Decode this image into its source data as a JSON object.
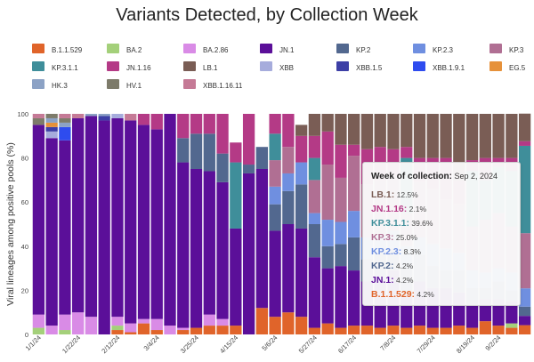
{
  "chart_data": {
    "type": "bar",
    "title": "Variants Detected, by Collection Week",
    "ylabel": "Viral lineages among positive pools (%)",
    "ylim": [
      0,
      100
    ],
    "y_ticks": [
      0,
      20,
      40,
      60,
      80,
      100
    ],
    "x_tick_labels": [
      "1/1/24",
      "1/22/24",
      "2/12/24",
      "3/4/24",
      "3/25/24",
      "4/15/24",
      "5/6/24",
      "5/27/24",
      "6/17/24",
      "7/8/24",
      "7/29/24",
      "8/19/24",
      "9/2/24"
    ],
    "x_tick_positions": [
      0,
      3,
      6,
      9,
      12,
      15,
      18,
      21,
      24,
      27,
      30,
      33,
      35
    ],
    "legend": [
      {
        "name": "B.1.1.529",
        "color": "#e0642a"
      },
      {
        "name": "BA.2",
        "color": "#a4d07a"
      },
      {
        "name": "BA.2.86",
        "color": "#d98be6"
      },
      {
        "name": "JN.1",
        "color": "#5b0f99"
      },
      {
        "name": "KP.2",
        "color": "#52688f"
      },
      {
        "name": "KP.2.3",
        "color": "#6f8fe0"
      },
      {
        "name": "KP.3",
        "color": "#b06f93"
      },
      {
        "name": "KP.3.1.1",
        "color": "#3f8e9a"
      },
      {
        "name": "JN.1.16",
        "color": "#b43a86"
      },
      {
        "name": "LB.1",
        "color": "#7a5d55"
      },
      {
        "name": "XBB",
        "color": "#a6acdc"
      },
      {
        "name": "XBB.1.5",
        "color": "#3d3fa6"
      },
      {
        "name": "XBB.1.9.1",
        "color": "#2e4cef"
      },
      {
        "name": "EG.5",
        "color": "#e6913a"
      },
      {
        "name": "HK.3",
        "color": "#8ca2c5"
      },
      {
        "name": "HV.1",
        "color": "#7d7b6a"
      },
      {
        "name": "XBB.1.16.11",
        "color": "#c57a96"
      }
    ],
    "series_order": [
      "B.1.1.529",
      "BA.2",
      "BA.2.86",
      "JN.1",
      "KP.2",
      "KP.2.3",
      "KP.3",
      "KP.3.1.1",
      "JN.1.16",
      "LB.1",
      "XBB",
      "XBB.1.5",
      "XBB.1.9.1",
      "EG.5",
      "HK.3",
      "HV.1",
      "XBB.1.16.11"
    ],
    "bars": [
      {
        "BA.2": 3,
        "BA.2.86": 6,
        "JN.1": 86,
        "HV.1": 3,
        "XBB.1.16.11": 2
      },
      {
        "BA.2.86": 4,
        "JN.1": 85,
        "XBB.1.5": 2,
        "HK.3": 2,
        "XBB": 3,
        "HV.1": 2,
        "EG.5": 2
      },
      {
        "BA.2": 2,
        "BA.2.86": 7,
        "JN.1": 79,
        "HK.3": 2,
        "XBB.1.9.1": 6,
        "HV.1": 2,
        "XBB.1.16.11": 2
      },
      {
        "BA.2.86": 10,
        "JN.1": 88,
        "XBB.1.16.11": 2
      },
      {
        "BA.2.86": 8,
        "JN.1": 91,
        "HK.3": 1
      },
      {
        "JN.1": 97,
        "XBB.1.5": 2,
        "HK.3": 1
      },
      {
        "B.1.1.529": 2,
        "BA.2": 2,
        "BA.2.86": 4,
        "JN.1": 90,
        "XBB": 2
      },
      {
        "B.1.1.529": 1,
        "BA.2.86": 4,
        "JN.1": 92,
        "XBB.1.16.11": 3
      },
      {
        "B.1.1.529": 5,
        "BA.2.86": 2,
        "JN.1": 88,
        "JN.1.16": 5
      },
      {
        "B.1.1.529": 2,
        "BA.2.86": 5,
        "JN.1": 86,
        "JN.1.16": 7
      },
      {
        "BA.2.86": 4,
        "JN.1": 96
      },
      {
        "B.1.1.529": 2,
        "BA.2.86": 1,
        "JN.1": 75,
        "KP.2": 11,
        "JN.1.16": 11
      },
      {
        "B.1.1.529": 3,
        "JN.1": 72,
        "KP.2": 16,
        "JN.1.16": 9
      },
      {
        "B.1.1.529": 4,
        "BA.2.86": 5,
        "JN.1": 65,
        "KP.2": 17,
        "JN.1.16": 9
      },
      {
        "B.1.1.529": 4,
        "BA.2.86": 3,
        "JN.1": 62,
        "KP.2": 13,
        "JN.1.16": 18
      },
      {
        "B.1.1.529": 4,
        "JN.1": 44,
        "KP.3.1.1": 30,
        "JN.1.16": 9
      },
      {
        "JN.1": 73,
        "KP.2": 4,
        "JN.1.16": 23
      },
      {
        "B.1.1.529": 12,
        "JN.1": 63,
        "KP.2": 10
      },
      {
        "B.1.1.529": 8,
        "JN.1": 39,
        "KP.2": 12,
        "KP.3.1.1": 12,
        "KP.2.3": 8,
        "KP.3": 12,
        "JN.1.16": 9
      },
      {
        "B.1.1.529": 10,
        "JN.1": 40,
        "KP.2": 15,
        "KP.2.3": 8,
        "KP.3": 12,
        "JN.1.16": 15
      },
      {
        "B.1.1.529": 8,
        "JN.1": 40,
        "KP.2": 20,
        "KP.2.3": 10,
        "JN.1.16": 12,
        "LB.1": 5
      },
      {
        "B.1.1.529": 3,
        "JN.1": 32,
        "KP.2": 15,
        "KP.3.1.1": 10,
        "KP.2.3": 5,
        "KP.3": 15,
        "JN.1.16": 10,
        "LB.1": 10
      },
      {
        "B.1.1.529": 5,
        "JN.1": 25,
        "KP.2": 10,
        "KP.2.3": 12,
        "KP.3": 25,
        "JN.1.16": 15,
        "LB.1": 8
      },
      {
        "B.1.1.529": 3,
        "JN.1": 28,
        "KP.2": 10,
        "KP.2.3": 10,
        "KP.3": 20,
        "JN.1.16": 15,
        "LB.1": 14
      },
      {
        "B.1.1.529": 4,
        "JN.1": 25,
        "KP.2": 15,
        "KP.2.3": 12,
        "KP.3": 25,
        "JN.1.16": 5,
        "LB.1": 14
      },
      {
        "B.1.1.529": 4,
        "JN.1": 20,
        "KP.2": 10,
        "KP.2.3": 10,
        "KP.3": 24,
        "JN.1.16": 16,
        "LB.1": 16
      },
      {
        "B.1.1.529": 3,
        "JN.1": 22,
        "KP.2": 12,
        "KP.2.3": 8,
        "KP.3": 25,
        "JN.1.16": 15,
        "LB.1": 15
      },
      {
        "B.1.1.529": 4,
        "JN.1": 25,
        "KP.2": 10,
        "KP.2.3": 8,
        "KP.3": 25,
        "JN.1.16": 12,
        "LB.1": 16
      },
      {
        "B.1.1.529": 3,
        "JN.1": 15,
        "KP.2": 12,
        "KP.3.1.1": 25,
        "KP.2.3": 10,
        "KP.3": 15,
        "JN.1.16": 5,
        "LB.1": 15
      },
      {
        "B.1.1.529": 4,
        "JN.1": 20,
        "KP.2": 12,
        "KP.2.3": 8,
        "KP.3": 25,
        "JN.1.16": 11,
        "LB.1": 20
      },
      {
        "B.1.1.529": 3,
        "JN.1": 18,
        "KP.2": 10,
        "KP.2.3": 10,
        "KP.3": 25,
        "JN.1.16": 14,
        "LB.1": 20
      },
      {
        "B.1.1.529": 3,
        "JN.1": 18,
        "KP.2": 8,
        "KP.2.3": 10,
        "KP.3": 22,
        "JN.1.16": 19,
        "LB.1": 20
      },
      {
        "B.1.1.529": 4,
        "JN.1": 15,
        "KP.2": 10,
        "KP.2.3": 8,
        "KP.3": 22,
        "JN.1.16": 11,
        "LB.1": 30
      },
      {
        "B.1.1.529": 3,
        "JN.1": 10,
        "KP.2": 8,
        "KP.2.3": 8,
        "KP.3": 20,
        "KP.3.1.1": 25,
        "JN.1.16": 5,
        "LB.1": 21
      },
      {
        "B.1.1.529": 6,
        "JN.1": 10,
        "KP.2": 5,
        "KP.2.3": 7,
        "KP.3": 24,
        "KP.3.1.1": 18,
        "JN.1.16": 10,
        "LB.1": 20
      },
      {
        "B.1.1.529": 4,
        "JN.1": 12,
        "KP.2": 8,
        "KP.2.3": 6,
        "KP.3": 25,
        "KP.3.1.1": 21,
        "JN.1.16": 4,
        "LB.1": 20
      },
      {
        "B.1.1.529": 3,
        "BA.2": 2,
        "JN.1": 10,
        "KP.2": 5,
        "KP.2.3": 8,
        "KP.3": 21,
        "KP.3.1.1": 25,
        "JN.1.16": 6,
        "LB.1": 20
      },
      {
        "B.1.1.529": 4.2,
        "JN.1": 4.2,
        "KP.2": 4.2,
        "KP.2.3": 8.3,
        "KP.3": 25.0,
        "KP.3.1.1": 39.6,
        "JN.1.16": 2.1,
        "LB.1": 12.5
      }
    ]
  },
  "tooltip": {
    "heading": "Week of collection:",
    "date": "Sep 2, 2024",
    "rows": [
      {
        "name": "LB.1:",
        "value": "12.5%",
        "color": "#7a5d55"
      },
      {
        "name": "JN.1.16:",
        "value": "2.1%",
        "color": "#b43a86"
      },
      {
        "name": "KP.3.1.1:",
        "value": "39.6%",
        "color": "#3f8e9a"
      },
      {
        "name": "KP.3:",
        "value": "25.0%",
        "color": "#b06f93"
      },
      {
        "name": "KP.2.3:",
        "value": "8.3%",
        "color": "#6f8fe0"
      },
      {
        "name": "KP.2:",
        "value": "4.2%",
        "color": "#52688f"
      },
      {
        "name": "JN.1:",
        "value": "4.2%",
        "color": "#5b0f99"
      },
      {
        "name": "B.1.1.529:",
        "value": "4.2%",
        "color": "#e0642a"
      }
    ]
  }
}
